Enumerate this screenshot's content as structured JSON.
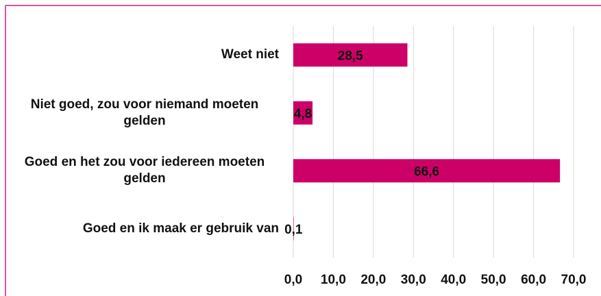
{
  "chart_data": {
    "type": "bar",
    "orientation": "horizontal",
    "categories": [
      "Weet niet",
      "Niet goed, zou voor niemand moeten gelden",
      "Goed en het zou voor iedereen moeten gelden",
      "Goed en ik maak er gebruik van"
    ],
    "values": [
      28.5,
      4.8,
      66.6,
      0.1
    ],
    "value_labels": [
      "28,5",
      "4,8",
      "66,6",
      "0,1"
    ],
    "color": "#cc0066",
    "xlim": [
      0,
      70
    ],
    "xticks": [
      {
        "value": 0,
        "label": "0,0"
      },
      {
        "value": 10,
        "label": "10,0"
      },
      {
        "value": 20,
        "label": "20,0"
      },
      {
        "value": 30,
        "label": "30,0"
      },
      {
        "value": 40,
        "label": "40,0"
      },
      {
        "value": 50,
        "label": "50,0"
      },
      {
        "value": 60,
        "label": "60,0"
      },
      {
        "value": 70,
        "label": "70,0"
      }
    ],
    "grid": true
  }
}
